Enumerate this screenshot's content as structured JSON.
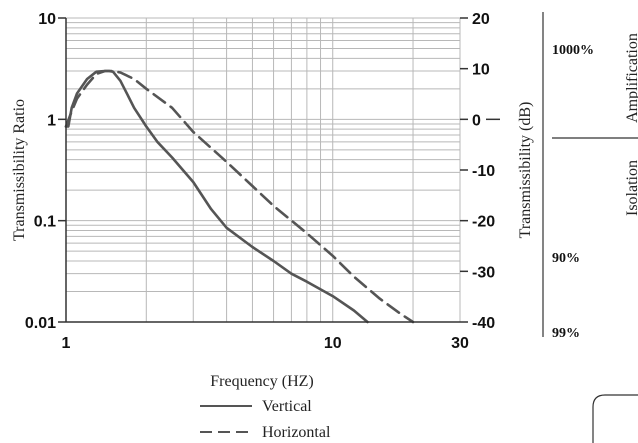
{
  "chart_data": {
    "type": "line",
    "x_scale": "log",
    "y_scale": "log",
    "xlim": [
      1,
      30
    ],
    "ylim": [
      0.01,
      10
    ],
    "xlabel": "Frequency (HZ)",
    "ylabel": "Transmissibility Ratio",
    "y2label": "Transmissibility (dB)",
    "grid": true,
    "legend_position": "bottom-center",
    "x_ticks": [
      "1",
      "10",
      "30"
    ],
    "y_ticks": [
      "10",
      "1",
      "0.1",
      "0.01"
    ],
    "y2_ticks": [
      "20",
      "10",
      "0",
      "-10",
      "-20",
      "-30",
      "-40"
    ],
    "zones": {
      "amplification_label": "Amplification",
      "isolation_label": "Isolation",
      "percent_labels": [
        "1000%",
        "90%",
        "99%"
      ]
    },
    "series": [
      {
        "name": "Vertical",
        "style": "solid",
        "color": "#555555",
        "x": [
          1.0,
          1.02,
          1.05,
          1.1,
          1.2,
          1.3,
          1.4,
          1.45,
          1.5,
          1.6,
          1.7,
          1.8,
          2.0,
          2.2,
          2.5,
          3.0,
          3.5,
          4.0,
          5.0,
          6.0,
          7.0,
          8.0,
          10.0,
          12.0,
          13.5
        ],
        "y": [
          0.85,
          0.85,
          1.3,
          1.8,
          2.5,
          2.95,
          3.0,
          3.0,
          2.95,
          2.4,
          1.75,
          1.3,
          0.85,
          0.6,
          0.42,
          0.24,
          0.13,
          0.085,
          0.055,
          0.04,
          0.03,
          0.025,
          0.018,
          0.013,
          0.01
        ]
      },
      {
        "name": "Horizontal",
        "style": "dashed",
        "color": "#555555",
        "x": [
          1.0,
          1.05,
          1.1,
          1.2,
          1.3,
          1.4,
          1.5,
          1.6,
          1.8,
          2.0,
          2.5,
          3.0,
          4.0,
          5.0,
          6.0,
          8.0,
          10.0,
          12.0,
          15.0,
          18.0,
          20.0
        ],
        "y": [
          0.85,
          1.2,
          1.6,
          2.2,
          2.8,
          3.0,
          3.0,
          2.9,
          2.5,
          2.0,
          1.3,
          0.75,
          0.38,
          0.22,
          0.14,
          0.075,
          0.045,
          0.028,
          0.017,
          0.012,
          0.01
        ]
      }
    ]
  }
}
